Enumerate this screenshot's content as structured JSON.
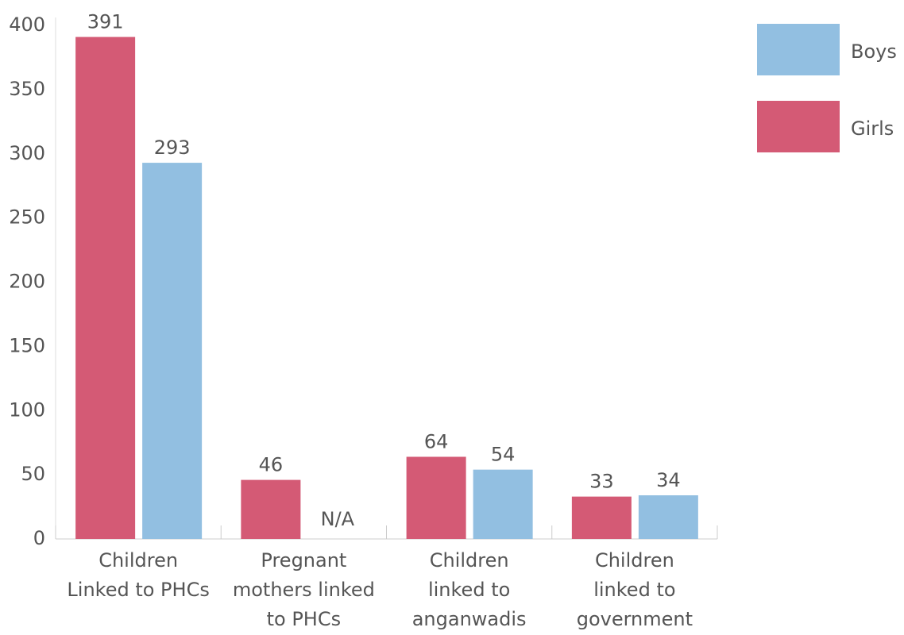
{
  "chart_data": {
    "type": "bar",
    "categories": [
      "Children\nLinked to PHCs",
      "Pregnant\nmothers linked\nto PHCs",
      "Children\nlinked to\nanganwadis",
      "Children\nlinked to\ngovernment"
    ],
    "series": [
      {
        "name": "Boys",
        "color": "#92bfe1",
        "values": [
          293,
          null,
          54,
          34
        ],
        "value_labels": [
          "293",
          "N/A",
          "54",
          "34"
        ]
      },
      {
        "name": "Girls",
        "color": "#d45a75",
        "values": [
          391,
          46,
          64,
          33
        ]
      }
    ],
    "ylim": [
      0,
      400
    ],
    "yticks": [
      0,
      50,
      100,
      150,
      200,
      250,
      300,
      350,
      400
    ],
    "grid": false,
    "legend": "top-right"
  }
}
